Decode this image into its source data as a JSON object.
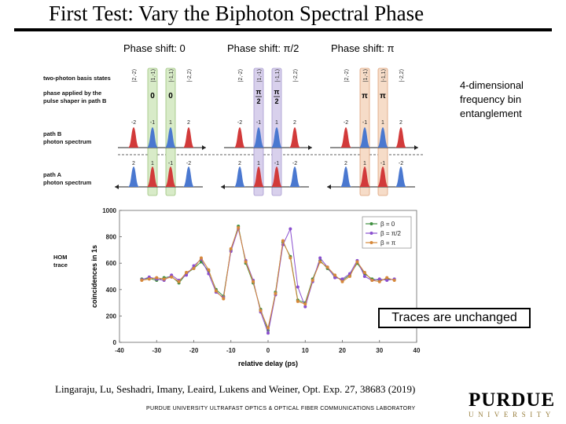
{
  "slide": {
    "title": "First Test: Vary the Biphoton Spectral Phase",
    "phase_labels": [
      "Phase shift: 0",
      "Phase shift: π/2",
      "Phase shift: π"
    ],
    "side_note": "4-dimensional frequency bin entanglement",
    "callout": "Traces are unchanged",
    "citation": "Lingaraju, Lu, Seshadri, Imany, Leaird, Lukens and Weiner, Opt. Exp. 27, 38683 (2019)",
    "lab_name": "PURDUE UNIVERSITY ULTRAFAST OPTICS & OPTICAL FIBER COMMUNICATIONS LABORATORY",
    "logo_word": "PURDUE",
    "logo_sub": "UNIVERSITY"
  },
  "figure": {
    "row_labels": {
      "basis": "two-photon basis states",
      "phase_line1": "phase applied by the",
      "phase_line2": "pulse shaper in path B",
      "pathB_line1": "path B",
      "pathB_line2": "photon spectrum",
      "pathA_line1": "path A",
      "pathA_line2": "photon spectrum",
      "hom_line1": "HOM",
      "hom_line2": "trace"
    },
    "basis_states": [
      "|2,-2⟩",
      "|1,-1⟩",
      "|-1,1⟩",
      "|-2,2⟩"
    ],
    "pathB_bins": [
      "-2",
      "-1",
      "1",
      "2"
    ],
    "pathA_bins": [
      "2",
      "1",
      "-1",
      "-2"
    ],
    "panels": [
      {
        "phase_values": [
          "0",
          "0"
        ],
        "highlight_color": "#d8ebc8",
        "highlight_stroke": "#9cc47c"
      },
      {
        "phase_values": [
          "π/2",
          "π/2"
        ],
        "highlight_color": "#d8d0ec",
        "highlight_stroke": "#a79ad0"
      },
      {
        "phase_values": [
          "π",
          "π"
        ],
        "highlight_color": "#f6dcc8",
        "highlight_stroke": "#dca27a"
      }
    ],
    "peak_colors": {
      "outer": "#d23a3a",
      "inner": "#4a78d0"
    }
  },
  "chart_data": {
    "type": "line",
    "xlabel": "relative delay (ps)",
    "ylabel": "coincidences in 1s",
    "xlim": [
      -40,
      40
    ],
    "ylim": [
      0,
      1000
    ],
    "xticks": [
      -40,
      -30,
      -20,
      -10,
      0,
      10,
      20,
      30,
      40
    ],
    "yticks": [
      0,
      200,
      400,
      600,
      800,
      1000
    ],
    "legend_position": "top-right",
    "x": [
      -34,
      -32,
      -30,
      -28,
      -26,
      -24,
      -22,
      -20,
      -18,
      -16,
      -14,
      -12,
      -10,
      -8,
      -6,
      -4,
      -2,
      0,
      2,
      4,
      6,
      8,
      10,
      12,
      14,
      16,
      18,
      20,
      22,
      24,
      26,
      28,
      30,
      32,
      34
    ],
    "series": [
      {
        "name": "β = 0",
        "color": "#3f8f3f",
        "values": [
          480,
          485,
          470,
          490,
          500,
          450,
          520,
          560,
          610,
          540,
          400,
          350,
          700,
          880,
          600,
          450,
          250,
          90,
          380,
          760,
          650,
          320,
          300,
          480,
          620,
          560,
          500,
          470,
          510,
          600,
          520,
          480,
          470,
          480,
          475
        ]
      },
      {
        "name": "β = π/2",
        "color": "#8a4fcf",
        "values": [
          475,
          495,
          480,
          470,
          510,
          470,
          510,
          580,
          630,
          520,
          380,
          340,
          690,
          860,
          620,
          470,
          230,
          70,
          360,
          740,
          860,
          420,
          270,
          460,
          640,
          570,
          490,
          480,
          520,
          620,
          500,
          470,
          480,
          470,
          480
        ]
      },
      {
        "name": "β = π",
        "color": "#d6883a",
        "values": [
          470,
          480,
          490,
          480,
          495,
          460,
          530,
          560,
          640,
          550,
          390,
          330,
          710,
          870,
          610,
          460,
          240,
          110,
          370,
          770,
          640,
          310,
          290,
          470,
          610,
          570,
          510,
          460,
          500,
          610,
          530,
          470,
          460,
          490,
          470
        ]
      }
    ]
  }
}
